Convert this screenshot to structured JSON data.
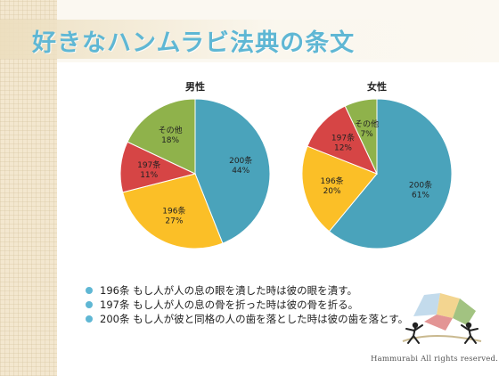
{
  "slide": {
    "title": "好きなハンムラビ法典の条文",
    "footer": "Hammurabi All rights reserved."
  },
  "bullets": [
    "196条 もし人が人の息の眼を潰した時は彼の眼を潰す。",
    "197条 もし人が人の息の骨を折った時は彼の骨を折る。",
    "200条 もし人が彼と同格の人の歯を落とした時は彼の歯を落とす。"
  ],
  "colors": {
    "200条": "#4aa3bb",
    "196条": "#fbbf27",
    "197条": "#d64545",
    "その他": "#8fb24b",
    "title": "#5fb7d4",
    "bullet": "#5fb7d4"
  },
  "chart_data": [
    {
      "type": "pie",
      "title": "男性",
      "slices": [
        {
          "label": "200条",
          "value": 44,
          "value_label": "44%"
        },
        {
          "label": "196条",
          "value": 27,
          "value_label": "27%"
        },
        {
          "label": "197条",
          "value": 11,
          "value_label": "11%"
        },
        {
          "label": "その他",
          "value": 18,
          "value_label": "18%"
        }
      ]
    },
    {
      "type": "pie",
      "title": "女性",
      "slices": [
        {
          "label": "200条",
          "value": 61,
          "value_label": "61%"
        },
        {
          "label": "196条",
          "value": 20,
          "value_label": "20%"
        },
        {
          "label": "197条",
          "value": 12,
          "value_label": "12%"
        },
        {
          "label": "その他",
          "value": 7,
          "value_label": "7%"
        }
      ]
    }
  ]
}
